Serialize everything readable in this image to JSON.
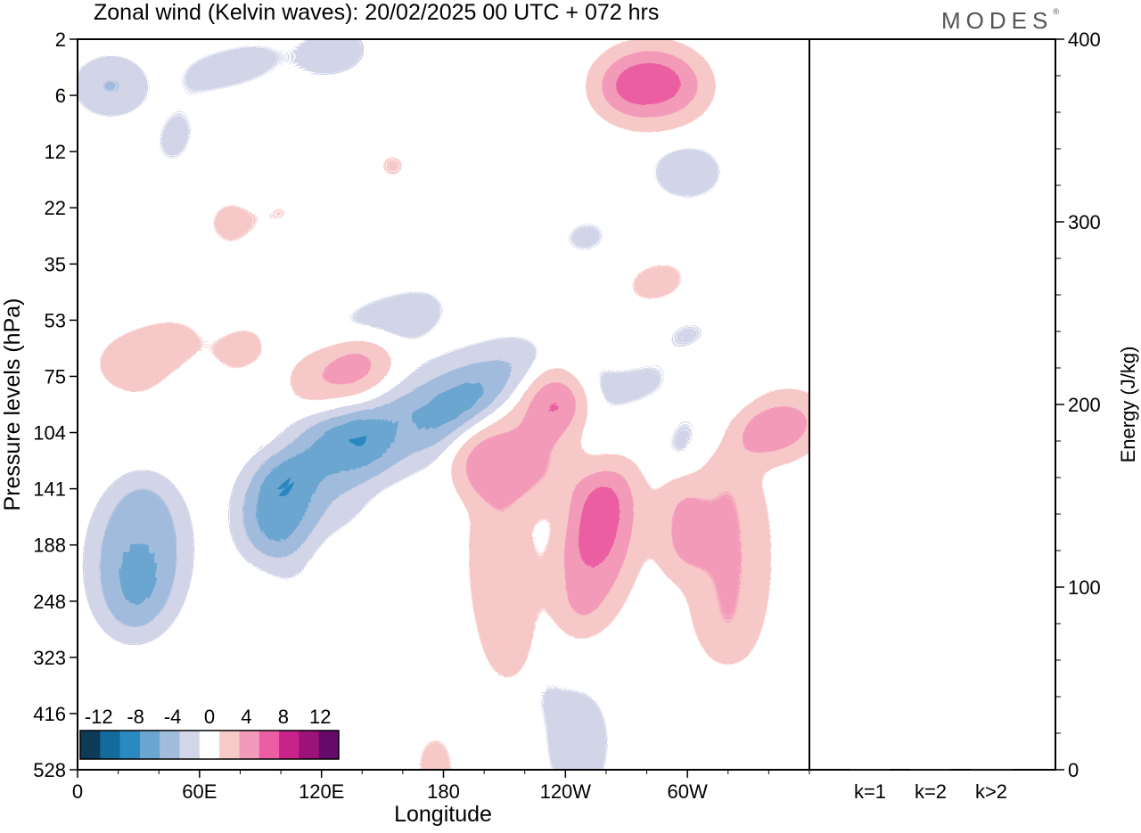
{
  "header": {
    "title": "Zonal wind (Kelvin waves):  20/02/2025  00 UTC  + 072 hrs",
    "brand": "MODES",
    "brand_mark": "®"
  },
  "chart_data": [
    {
      "type": "heatmap",
      "title": "Zonal wind (Kelvin waves):  20/02/2025  00 UTC  + 072 hrs",
      "xlabel": "Longitude",
      "ylabel": "Pressure levels (hPa)",
      "x_ticks": [
        {
          "label": "0",
          "lon": 0
        },
        {
          "label": "60E",
          "lon": 60
        },
        {
          "label": "120E",
          "lon": 120
        },
        {
          "label": "180",
          "lon": 180
        },
        {
          "label": "120W",
          "lon": 240
        },
        {
          "label": "60W",
          "lon": 300
        }
      ],
      "xlim": [
        0,
        360
      ],
      "y_ticks": [
        2,
        6,
        12,
        22,
        35,
        53,
        75,
        104,
        141,
        188,
        248,
        323,
        416,
        528
      ],
      "y_scale": "level index (top 2 hPa, bottom 528 hPa)",
      "colorbar": {
        "labels": [
          "-12",
          "-8",
          "-4",
          "0",
          "4",
          "8",
          "12"
        ],
        "levels": [
          -14,
          -12,
          -10,
          -8,
          -6,
          -4,
          -2,
          2,
          4,
          6,
          8,
          10,
          12,
          14
        ],
        "colors": [
          "#0e3b57",
          "#126b9a",
          "#2a89c0",
          "#6aa6cf",
          "#a2bcdc",
          "#d3d6e8",
          "#ffffff",
          "#f7c9c9",
          "#f39aba",
          "#ec5ea2",
          "#c8228b",
          "#9c1278",
          "#650a6b"
        ],
        "placement": "bottom-left"
      },
      "features": [
        {
          "sign": "negative",
          "lon": [
            30,
            115
          ],
          "hpa": [
            6,
            12
          ],
          "peak": -6
        },
        {
          "sign": "negative",
          "lon": [
            90,
            200
          ],
          "hpa": [
            75,
            188
          ],
          "peak": -12
        },
        {
          "sign": "negative",
          "lon": [
            10,
            55
          ],
          "hpa": [
            141,
            323
          ],
          "peak": -9
        },
        {
          "sign": "negative",
          "lon": [
            225,
            260
          ],
          "hpa": [
            248,
            528
          ],
          "peak": -5
        },
        {
          "sign": "positive",
          "lon": [
            250,
            310
          ],
          "hpa": [
            2,
            12
          ],
          "peak": 9
        },
        {
          "sign": "positive",
          "lon": [
            225,
            265
          ],
          "hpa": [
            75,
            104
          ],
          "peak": 11
        },
        {
          "sign": "positive",
          "lon": [
            235,
            270
          ],
          "hpa": [
            104,
            248
          ],
          "peak": 9
        },
        {
          "sign": "positive",
          "lon": [
            290,
            360
          ],
          "hpa": [
            75,
            248
          ],
          "peak": 6
        },
        {
          "sign": "positive",
          "lon": [
            0,
            60
          ],
          "hpa": [
            53,
            104
          ],
          "peak": 5
        },
        {
          "sign": "positive",
          "lon": [
            110,
            150
          ],
          "hpa": [
            53,
            104
          ],
          "peak": 8
        }
      ]
    },
    {
      "type": "bar",
      "categories": [
        "k=1",
        "k=2",
        "k>2"
      ],
      "values": [
        0.4,
        0.2,
        0.5
      ],
      "ylabel": "Energy (J/kg)",
      "ylim": [
        0,
        400
      ],
      "y_ticks": [
        0,
        100,
        200,
        300,
        400
      ],
      "grid": false
    }
  ]
}
